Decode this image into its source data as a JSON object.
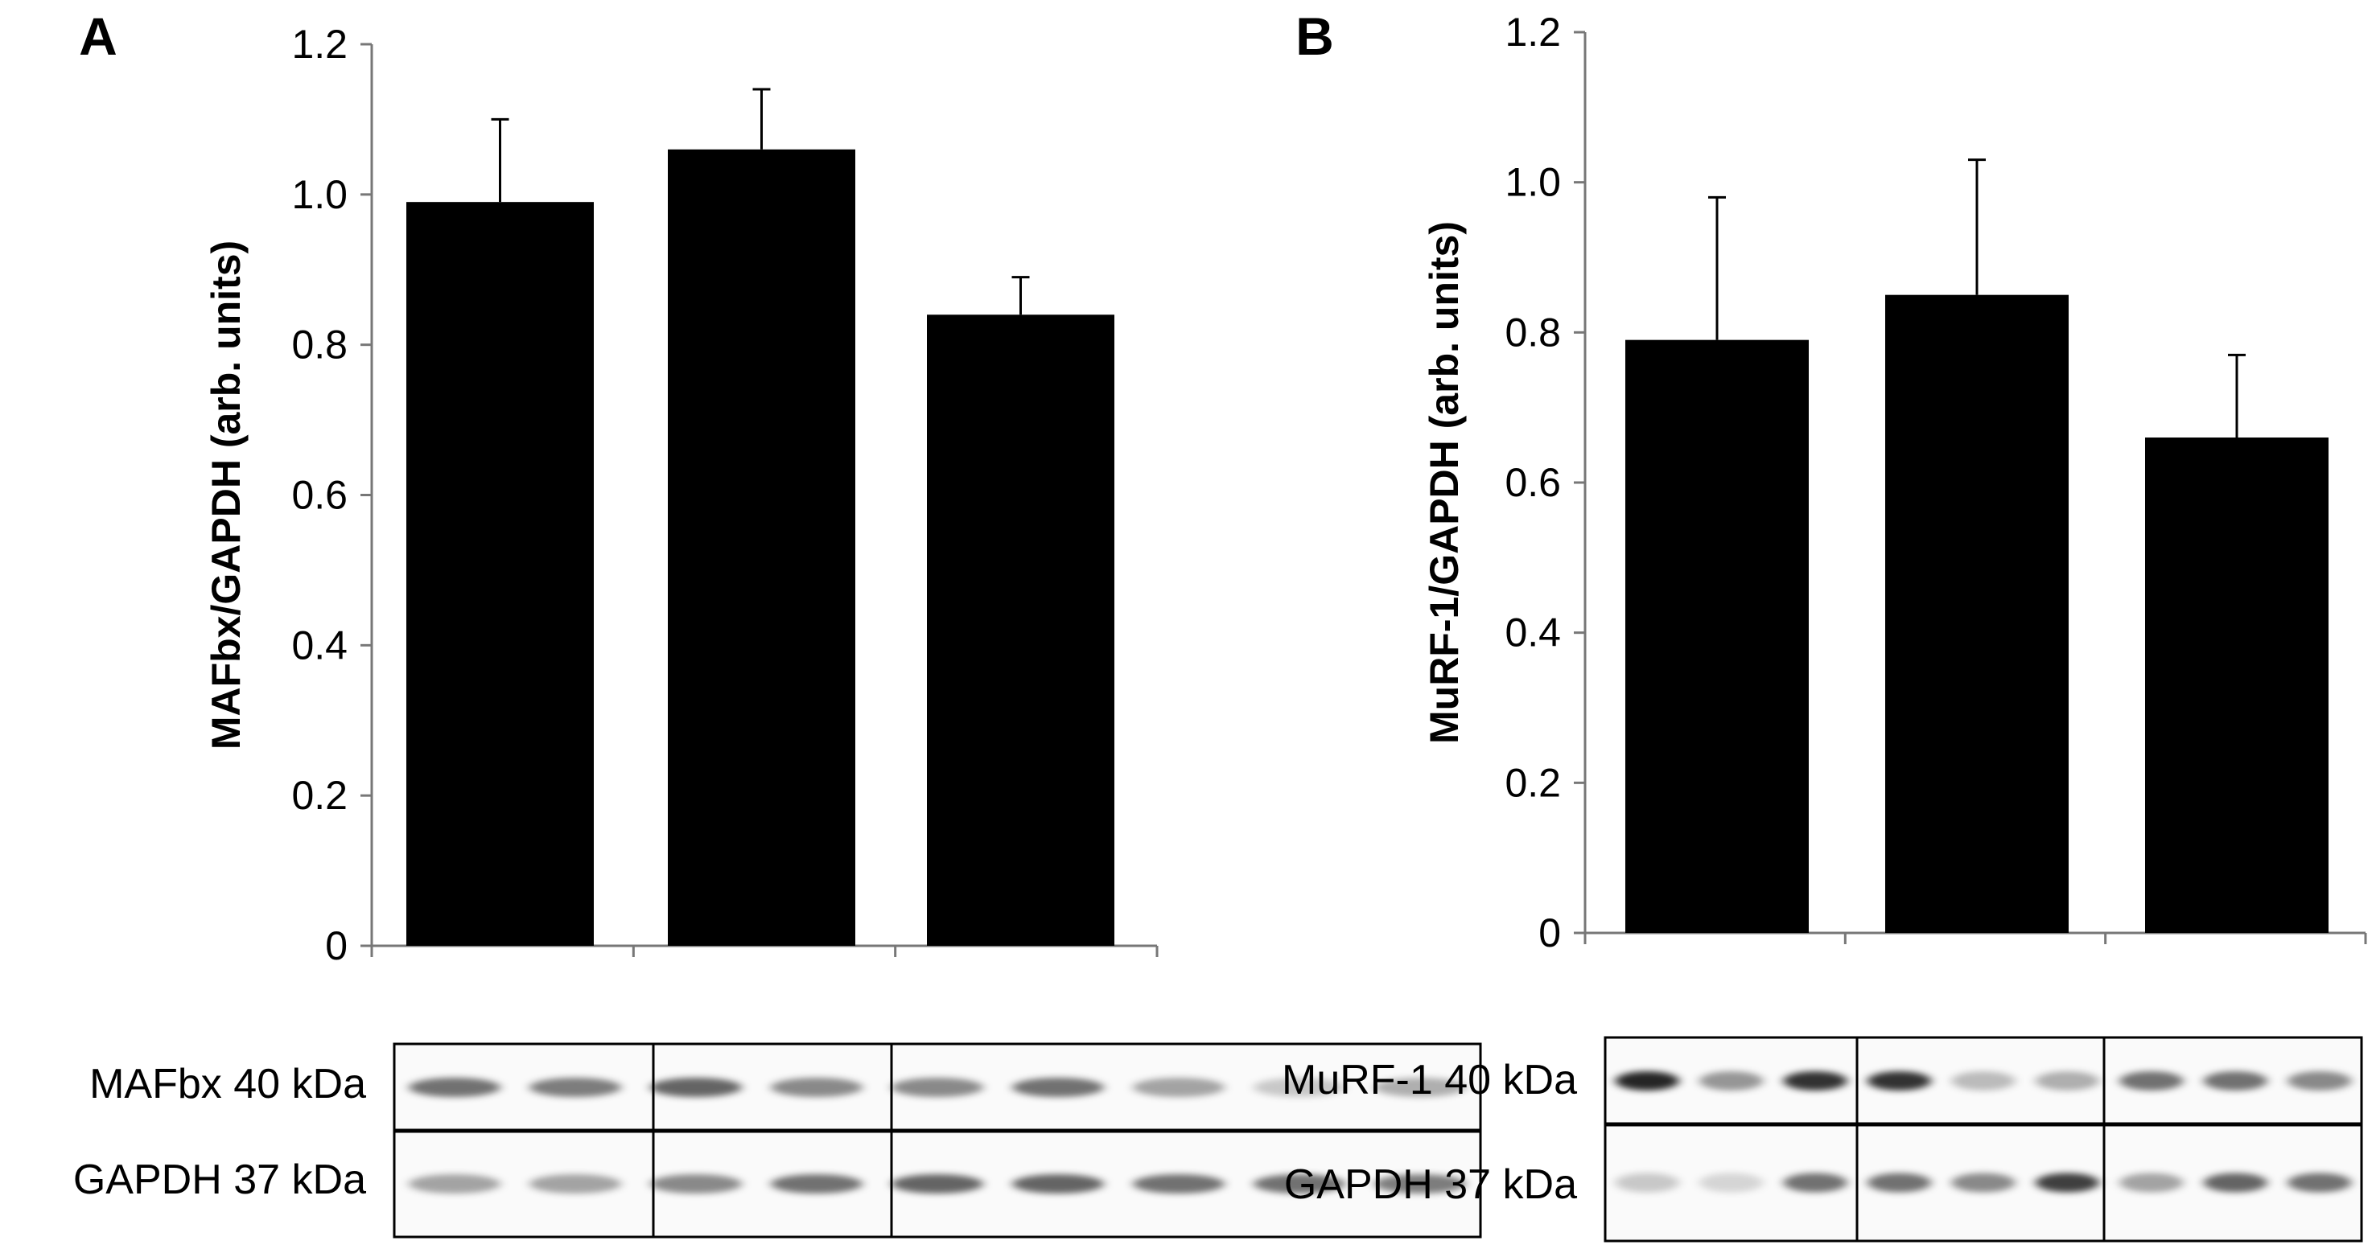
{
  "chart_data": [
    {
      "type": "bar",
      "panel": "A",
      "ylabel": "MAFbx/GAPDH (arb. units)",
      "ylim": [
        0,
        1.2
      ],
      "yticks": [
        "0",
        "0.2",
        "0.4",
        "0.6",
        "0.8",
        "1.0",
        "1.2"
      ],
      "categories": [
        "",
        "",
        ""
      ],
      "values": [
        0.99,
        1.06,
        0.84
      ],
      "errors": [
        0.11,
        0.08,
        0.05
      ],
      "bar_color": "#000000",
      "blots": [
        {
          "label": "MAFbx 40 kDa",
          "band_intensity": [
            0.55,
            0.5,
            0.6,
            0.45,
            0.45,
            0.55,
            0.35,
            0.2,
            0.3
          ]
        },
        {
          "label": "GAPDH 37 kDa",
          "band_intensity": [
            0.35,
            0.35,
            0.45,
            0.55,
            0.6,
            0.6,
            0.55,
            0.55,
            0.5
          ]
        }
      ]
    },
    {
      "type": "bar",
      "panel": "B",
      "ylabel": "MuRF-1/GAPDH (arb. units)",
      "ylim": [
        0,
        1.2
      ],
      "yticks": [
        "0",
        "0.2",
        "0.4",
        "0.6",
        "0.8",
        "1.0",
        "1.2"
      ],
      "categories": [
        "",
        "",
        ""
      ],
      "values": [
        0.79,
        0.85,
        0.66
      ],
      "errors": [
        0.19,
        0.18,
        0.11
      ],
      "bar_color": "#000000",
      "blots": [
        {
          "label": "MuRF-1 40 kDa",
          "band_intensity": [
            0.85,
            0.4,
            0.8,
            0.8,
            0.25,
            0.3,
            0.55,
            0.55,
            0.45
          ]
        },
        {
          "label": "GAPDH 37 kDa",
          "band_intensity": [
            0.2,
            0.15,
            0.55,
            0.55,
            0.45,
            0.75,
            0.35,
            0.6,
            0.55
          ]
        }
      ]
    }
  ]
}
